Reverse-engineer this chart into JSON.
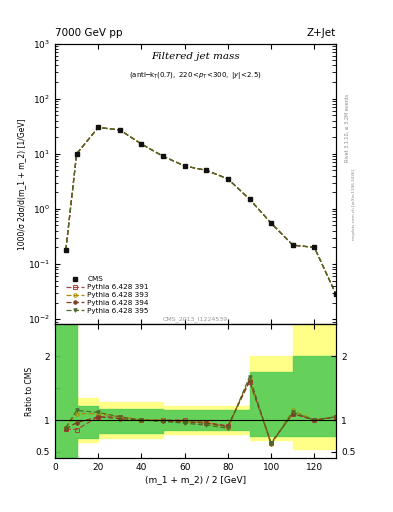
{
  "title_left": "7000 GeV pp",
  "title_right": "Z+Jet",
  "ylabel_main": "1000/σ 2dσ/d(m_1 + m_2) [1/GeV]",
  "ylabel_ratio": "Ratio to CMS",
  "xlabel": "(m_1 + m_2) / 2 [GeV]",
  "watermark": "CMS_2013_I1224539",
  "right_label": "mcplots.cern.ch [arXiv:1306.3436]",
  "right_label2": "Rivet 3.1.10, ≥ 3.2M events",
  "cms_x": [
    5,
    10,
    20,
    30,
    40,
    50,
    60,
    70,
    80,
    90,
    100,
    110,
    120,
    130
  ],
  "cms_y": [
    0.18,
    10.0,
    30.0,
    27.0,
    15.0,
    9.0,
    6.0,
    5.0,
    3.5,
    1.5,
    0.55,
    0.22,
    0.2,
    0.028
  ],
  "py391_y": [
    0.18,
    10.0,
    30.0,
    27.0,
    15.0,
    9.0,
    6.0,
    5.0,
    3.5,
    1.5,
    0.55,
    0.22,
    0.2,
    0.028
  ],
  "py393_y": [
    0.18,
    10.0,
    30.0,
    27.0,
    15.0,
    9.0,
    6.0,
    5.0,
    3.5,
    1.5,
    0.55,
    0.22,
    0.2,
    0.028
  ],
  "py394_y": [
    0.18,
    10.0,
    30.0,
    27.0,
    15.0,
    9.0,
    6.0,
    5.0,
    3.5,
    1.5,
    0.55,
    0.22,
    0.2,
    0.028
  ],
  "py395_y": [
    0.18,
    10.0,
    30.0,
    27.0,
    15.0,
    9.0,
    6.0,
    5.0,
    3.5,
    1.5,
    0.55,
    0.22,
    0.2,
    0.028
  ],
  "ratio391": [
    0.86,
    0.85,
    1.05,
    1.05,
    1.0,
    1.0,
    1.0,
    0.96,
    0.91,
    1.6,
    0.64,
    1.1,
    1.0,
    1.05
  ],
  "ratio393": [
    0.88,
    1.1,
    1.1,
    1.05,
    1.0,
    1.0,
    0.97,
    0.96,
    0.88,
    1.65,
    0.62,
    1.15,
    1.0,
    1.05
  ],
  "ratio394": [
    0.86,
    0.96,
    1.05,
    1.02,
    1.0,
    0.98,
    0.97,
    0.95,
    0.9,
    1.62,
    0.64,
    1.1,
    1.0,
    1.05
  ],
  "ratio395": [
    0.88,
    1.15,
    1.12,
    1.05,
    1.0,
    0.98,
    0.95,
    0.92,
    0.87,
    1.68,
    0.62,
    1.12,
    1.0,
    1.05
  ],
  "yellow_edges": [
    0,
    10,
    20,
    50,
    90,
    110,
    130
  ],
  "yellow_lo": [
    0.4,
    0.65,
    0.72,
    0.78,
    0.68,
    0.55,
    0.55
  ],
  "yellow_hi": [
    3.0,
    1.35,
    1.28,
    1.22,
    2.0,
    2.5,
    2.5
  ],
  "green_edges": [
    0,
    10,
    20,
    50,
    90,
    110,
    130
  ],
  "green_lo": [
    0.4,
    0.72,
    0.8,
    0.85,
    0.75,
    0.75,
    0.75
  ],
  "green_hi": [
    3.0,
    1.22,
    1.18,
    1.15,
    1.75,
    2.0,
    2.0
  ],
  "color_cms": "#111111",
  "color_391": "#AA4444",
  "color_393": "#AA8800",
  "color_394": "#7B4020",
  "color_395": "#4B6B2A",
  "xlim": [
    0,
    130
  ],
  "ylim_main": [
    0.008,
    1000
  ],
  "ylim_ratio": [
    0.4,
    2.5
  ]
}
